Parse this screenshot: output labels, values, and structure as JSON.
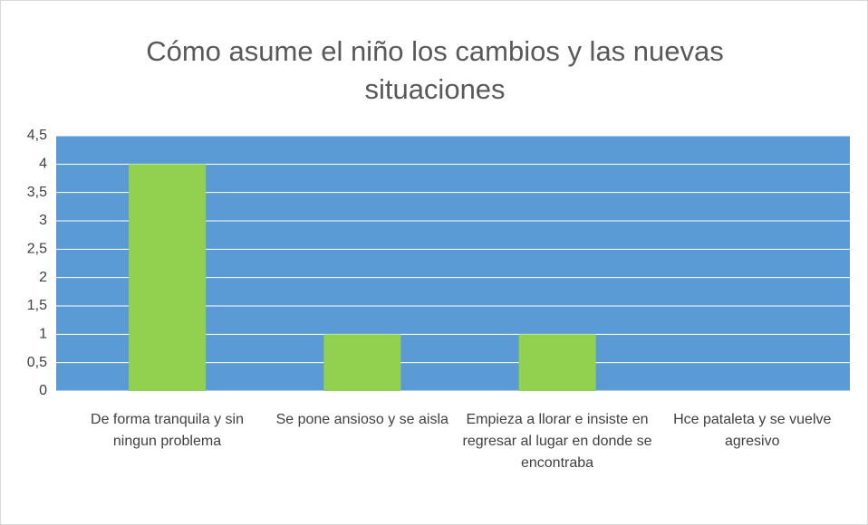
{
  "chart_data": {
    "type": "bar",
    "title": "Cómo asume el niño los cambios y las nuevas situaciones",
    "categories": [
      "De forma tranquila y sin ningun problema",
      "Se pone ansioso y se aisla",
      "Empieza a llorar e insiste en regresar al lugar en donde se encontraba",
      "Hce pataleta y se vuelve agresivo"
    ],
    "values": [
      4,
      1,
      1,
      0
    ],
    "color": "#92d050",
    "plot_background": "#5b9bd5",
    "ylim": [
      0,
      4.5
    ],
    "yticks": [
      0,
      {
        "value": 0.5,
        "label": "0,5"
      },
      1,
      {
        "value": 1.5,
        "label": "1,5"
      },
      2,
      {
        "value": 2.5,
        "label": "2,5"
      },
      3,
      {
        "value": 3.5,
        "label": "3,5"
      },
      4,
      {
        "value": 4.5,
        "label": "4,5"
      }
    ],
    "grid": true
  }
}
